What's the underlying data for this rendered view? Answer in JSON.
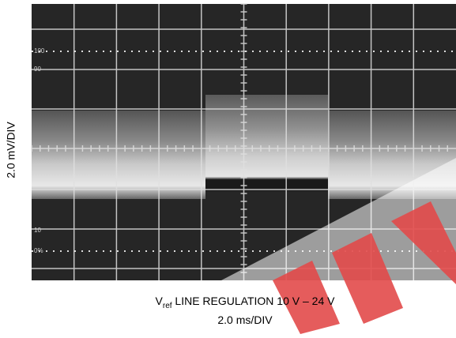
{
  "y_axis_label": "2.0 mV/DIV",
  "caption": {
    "symbol": "V",
    "subscript": "ref",
    "text": " LINE REGULATION 10 V – 24 V"
  },
  "x_axis_label": "2.0 ms/DIV",
  "graticule_labels": [
    "100",
    "90",
    "10",
    "0%"
  ]
}
